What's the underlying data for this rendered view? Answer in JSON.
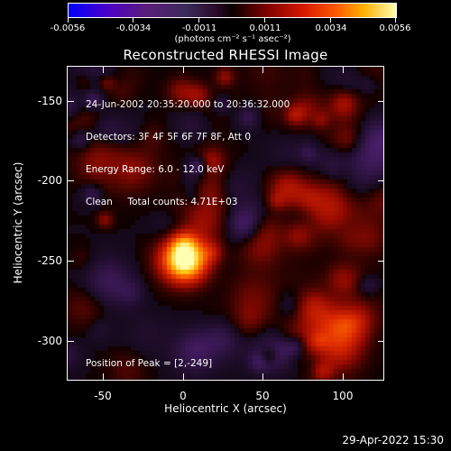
{
  "colorbar": {
    "tick_labels": [
      "-0.0056",
      "-0.0034",
      "-0.0011",
      "0.0011",
      "0.0034",
      "0.0056"
    ],
    "units": "(photons cm⁻² s⁻¹ asec⁻²)"
  },
  "title": "Reconstructed RHESSI Image",
  "info": {
    "time_range": "24-Jun-2002 20:35:20.000 to 20:36:32.000",
    "detectors": "Detectors: 3F 4F 5F 6F 7F 8F, Att 0",
    "energy": "Energy Range: 6.0 - 12.0 keV",
    "clean": "Clean     Total counts: 4.71E+03"
  },
  "peak": "Position of Peak = [2,-249]",
  "axes": {
    "xlabel": "Heliocentric X (arcsec)",
    "ylabel": "Heliocentric Y (arcsec)",
    "xticks": [
      "-50",
      "0",
      "50",
      "100"
    ],
    "yticks": [
      "-150",
      "-200",
      "-250",
      "-300"
    ]
  },
  "timestamp": "29-Apr-2022 15:30",
  "colors": {
    "background": "#000000",
    "foreground": "#ffffff"
  }
}
